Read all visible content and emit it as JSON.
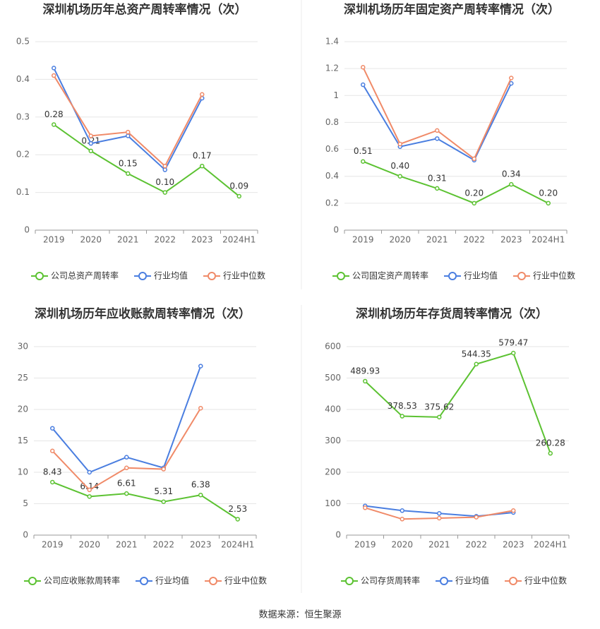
{
  "chart_data": [
    {
      "type": "line",
      "title": "深圳机场历年总资产周转率情况（次）",
      "categories": [
        "2019",
        "2020",
        "2021",
        "2022",
        "2023",
        "2024H1"
      ],
      "ylim": [
        0,
        0.5
      ],
      "yticks": [
        0,
        0.1,
        0.2,
        0.3,
        0.4,
        0.5
      ],
      "grid": true,
      "series": [
        {
          "name": "公司总资产周转率",
          "color": "#5cc232",
          "values": [
            0.28,
            0.21,
            0.15,
            0.1,
            0.17,
            0.09
          ],
          "value_labels": [
            "0.28",
            "0.21",
            "0.15",
            "0.10",
            "0.17",
            "0.09"
          ]
        },
        {
          "name": "行业均值",
          "color": "#4a7ee0",
          "values": [
            0.43,
            0.23,
            0.25,
            0.16,
            0.35,
            null
          ]
        },
        {
          "name": "行业中位数",
          "color": "#f08a68",
          "values": [
            0.41,
            0.25,
            0.26,
            0.17,
            0.36,
            null
          ]
        }
      ]
    },
    {
      "type": "line",
      "title": "深圳机场历年固定资产周转率情况（次）",
      "categories": [
        "2019",
        "2020",
        "2021",
        "2022",
        "2023",
        "2024H1"
      ],
      "ylim": [
        0,
        1.4
      ],
      "yticks": [
        0,
        0.2,
        0.4,
        0.6,
        0.8,
        1,
        1.2,
        1.4
      ],
      "grid": true,
      "series": [
        {
          "name": "公司固定资产周转率",
          "color": "#5cc232",
          "values": [
            0.51,
            0.4,
            0.31,
            0.2,
            0.34,
            0.2
          ],
          "value_labels": [
            "0.51",
            "0.40",
            "0.31",
            "0.20",
            "0.34",
            "0.20"
          ]
        },
        {
          "name": "行业均值",
          "color": "#4a7ee0",
          "values": [
            1.08,
            0.62,
            0.68,
            0.52,
            1.09,
            null
          ]
        },
        {
          "name": "行业中位数",
          "color": "#f08a68",
          "values": [
            1.21,
            0.64,
            0.74,
            0.53,
            1.13,
            null
          ]
        }
      ]
    },
    {
      "type": "line",
      "title": "深圳机场历年应收账款周转率情况（次）",
      "categories": [
        "2019",
        "2020",
        "2021",
        "2022",
        "2023",
        "2024H1"
      ],
      "ylim": [
        0,
        30
      ],
      "yticks": [
        0,
        5,
        10,
        15,
        20,
        25,
        30
      ],
      "grid": true,
      "series": [
        {
          "name": "公司应收账款周转率",
          "color": "#5cc232",
          "values": [
            8.43,
            6.14,
            6.61,
            5.31,
            6.38,
            2.53
          ]
        },
        {
          "name": "行业均值",
          "color": "#4a7ee0",
          "values": [
            17.0,
            10.0,
            12.4,
            10.7,
            26.9,
            null
          ]
        },
        {
          "name": "行业中位数",
          "color": "#f08a68",
          "values": [
            13.4,
            7.2,
            10.7,
            10.5,
            20.2,
            null
          ]
        }
      ]
    },
    {
      "type": "line",
      "title": "深圳机场历年存货周转率情况（次）",
      "categories": [
        "2019",
        "2020",
        "2021",
        "2022",
        "2023",
        "2024H1"
      ],
      "ylim": [
        0,
        600
      ],
      "yticks": [
        0,
        100,
        200,
        300,
        400,
        500,
        600
      ],
      "grid": true,
      "series": [
        {
          "name": "公司存货周转率",
          "color": "#5cc232",
          "values": [
            489.93,
            378.53,
            375.62,
            544.35,
            579.47,
            260.28
          ]
        },
        {
          "name": "行业均值",
          "color": "#4a7ee0",
          "values": [
            93,
            78,
            69,
            60,
            72,
            null
          ]
        },
        {
          "name": "行业中位数",
          "color": "#f08a68",
          "values": [
            87,
            51,
            54,
            57,
            78,
            null
          ]
        }
      ]
    }
  ],
  "source": "数据来源：恒生聚源"
}
